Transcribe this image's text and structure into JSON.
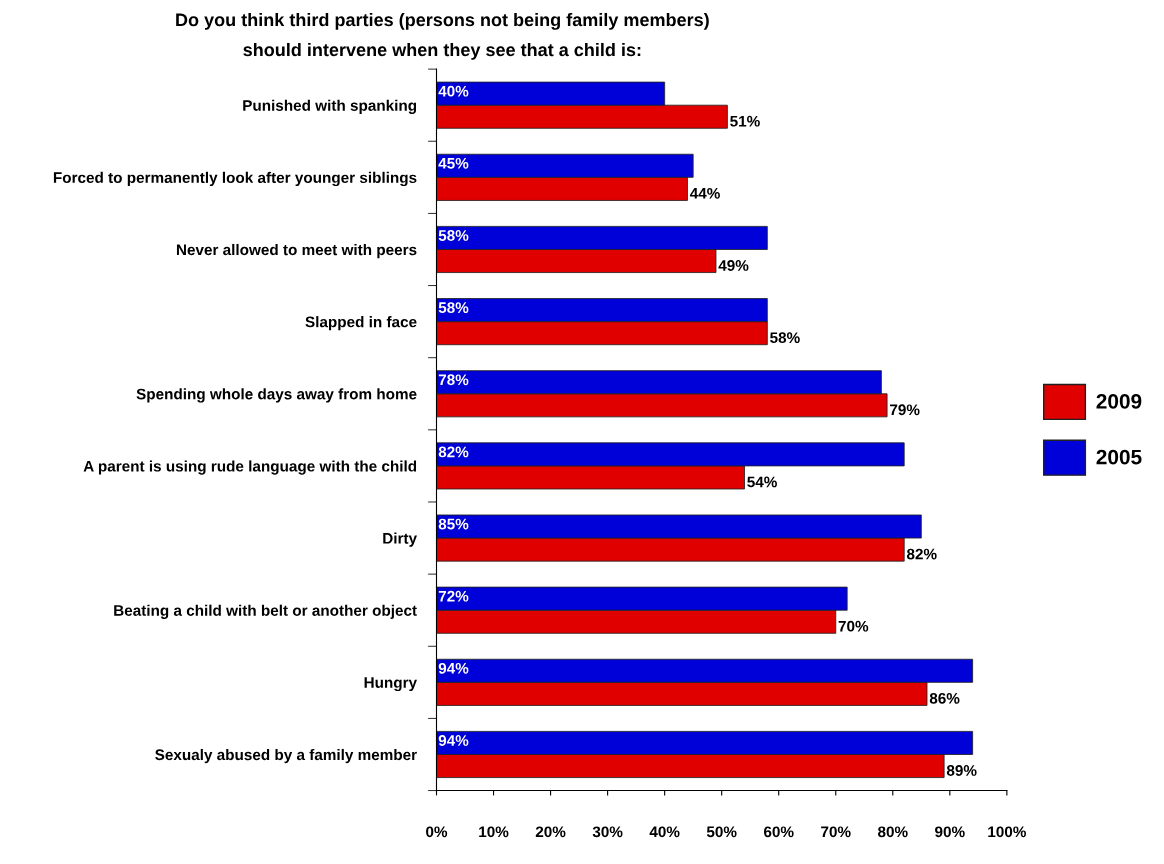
{
  "chart_data": {
    "type": "bar",
    "orientation": "horizontal",
    "title": "Do you think third parties (persons not being family members)\nshould intervene when they see that a child is:",
    "categories": [
      "Punished with spanking",
      "Forced to permanently look after younger siblings",
      "Never allowed to meet with peers",
      "Slapped in face",
      "Spending whole days away from home",
      "A parent is using rude language with the child",
      "Dirty",
      "Beating a child with belt or another object",
      "Hungry",
      "Sexualy abused by a family member"
    ],
    "series": [
      {
        "name": "2009",
        "color": "#e00000",
        "values": [
          51,
          44,
          49,
          58,
          79,
          54,
          82,
          70,
          86,
          89
        ],
        "value_labels": [
          "51%",
          "44%",
          "49%",
          "58%",
          "79%",
          "54%",
          "82%",
          "70%",
          "86%",
          "89%"
        ]
      },
      {
        "name": "2005",
        "color": "#0000d8",
        "values": [
          40,
          45,
          58,
          58,
          78,
          82,
          85,
          72,
          94,
          94
        ],
        "value_labels": [
          "40%",
          "45%",
          "58%",
          "58%",
          "78%",
          "82%",
          "85%",
          "72%",
          "94%",
          "94%"
        ]
      }
    ],
    "xlim": [
      0,
      100
    ],
    "xticks": [
      {
        "value": 0,
        "label": "0%"
      },
      {
        "value": 10,
        "label": "10%"
      },
      {
        "value": 20,
        "label": "20%"
      },
      {
        "value": 30,
        "label": "30%"
      },
      {
        "value": 40,
        "label": "40%"
      },
      {
        "value": 50,
        "label": "50%"
      },
      {
        "value": 60,
        "label": "60%"
      },
      {
        "value": 70,
        "label": "70%"
      },
      {
        "value": 80,
        "label": "80%"
      },
      {
        "value": 90,
        "label": "90%"
      },
      {
        "value": 100,
        "label": "100%"
      }
    ],
    "legend": "right",
    "grid": false
  }
}
